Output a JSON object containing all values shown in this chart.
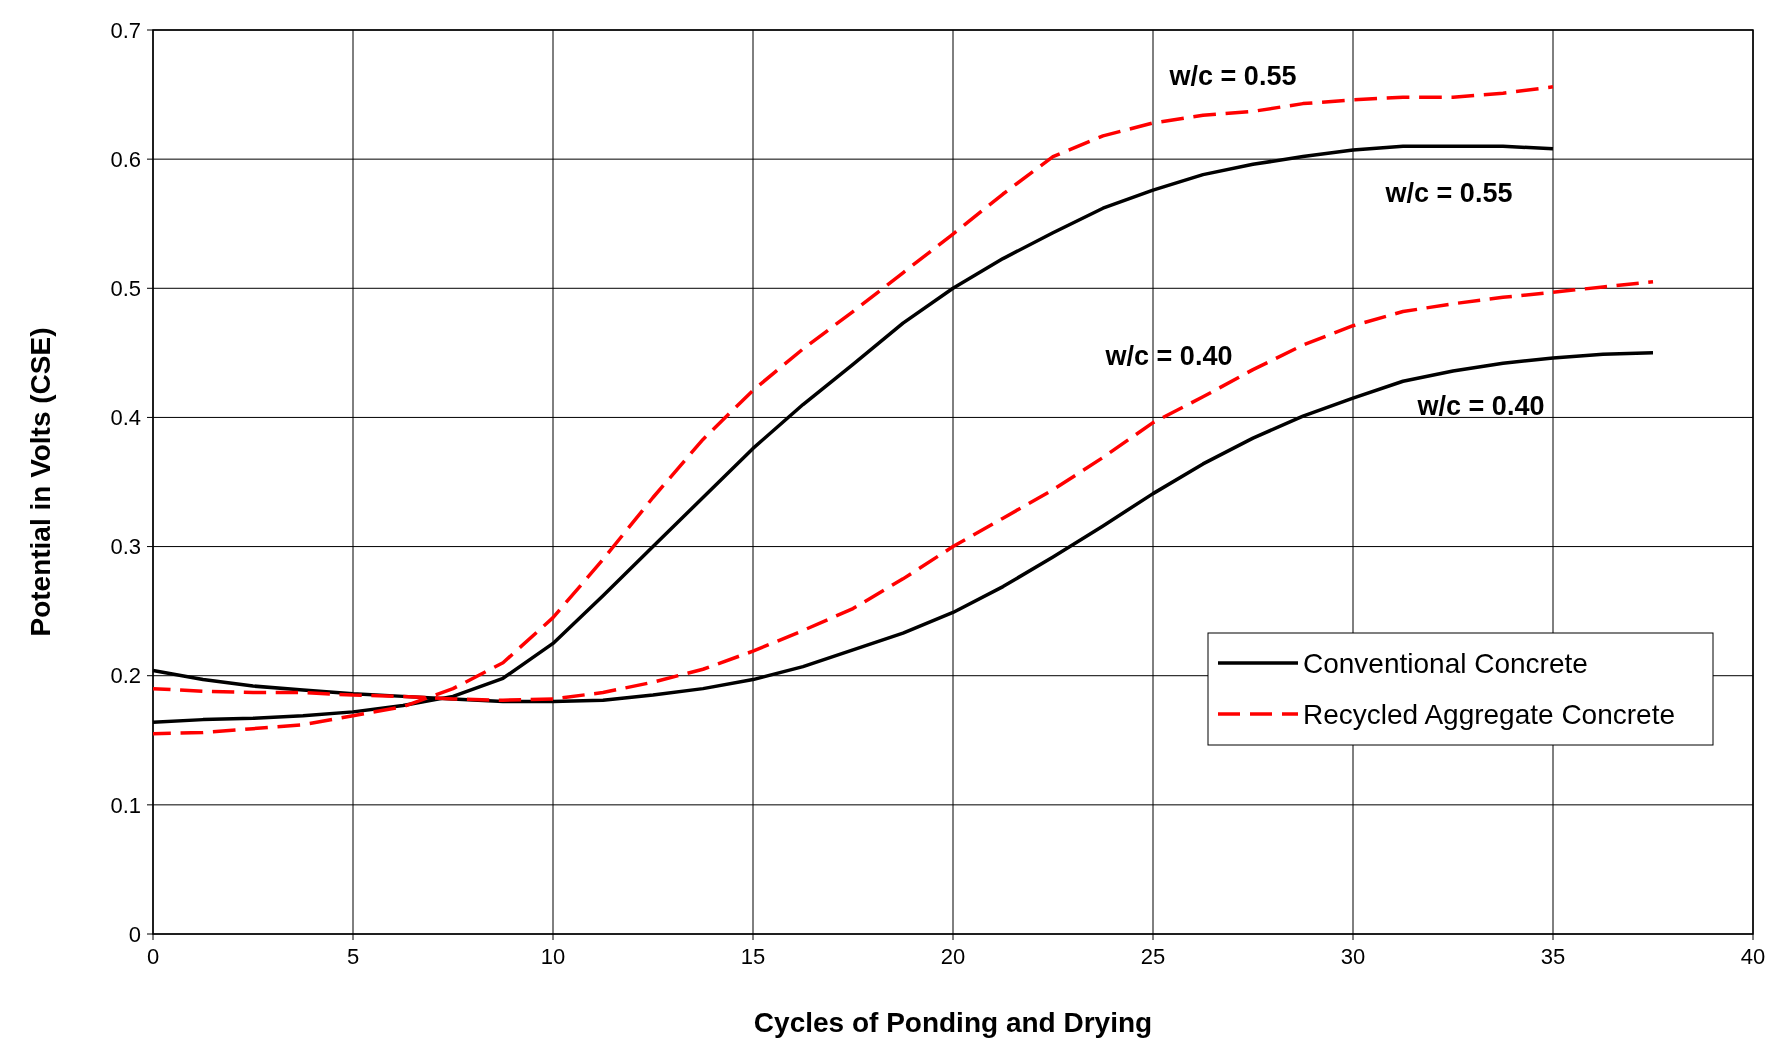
{
  "chart_data": {
    "type": "line",
    "xlabel": "Cycles of Ponding and Drying",
    "ylabel": "Potential in Volts (CSE)",
    "xlim": [
      0,
      40
    ],
    "xticks": [
      0,
      5,
      10,
      15,
      20,
      25,
      30,
      35,
      40
    ],
    "ylim": [
      0,
      0.7
    ],
    "yticks": [
      0,
      0.1,
      0.2,
      0.3,
      0.4,
      0.5,
      0.6,
      0.7
    ],
    "grid": true,
    "legend": "right",
    "marker": "none",
    "series": [
      {
        "name": "Conventional Concrete",
        "color": "#000000",
        "line_style": "solid",
        "x": [
          0,
          1.25,
          2.5,
          3.75,
          5,
          6.25,
          7.5,
          8.75,
          10,
          11.25,
          12.5,
          13.75,
          15,
          16.25,
          17.5,
          18.75,
          20,
          21.25,
          22.5,
          23.75,
          25,
          26.25,
          27.5,
          28.75,
          30,
          31.25,
          32.5,
          33.75,
          35
        ],
        "values": [
          0.164,
          0.166,
          0.167,
          0.169,
          0.172,
          0.177,
          0.184,
          0.198,
          0.225,
          0.262,
          0.3,
          0.338,
          0.376,
          0.41,
          0.441,
          0.473,
          0.5,
          0.523,
          0.543,
          0.562,
          0.576,
          0.588,
          0.596,
          0.602,
          0.607,
          0.61,
          0.61,
          0.61,
          0.608
        ]
      },
      {
        "color": "#000000",
        "line_style": "solid",
        "x": [
          0,
          1.25,
          2.5,
          3.75,
          5,
          6.25,
          7.5,
          8.75,
          10,
          11.25,
          12.5,
          13.75,
          15,
          16.25,
          17.5,
          18.75,
          20,
          21.25,
          22.5,
          23.75,
          25,
          26.25,
          27.5,
          28.75,
          30,
          31.25,
          32.5,
          33.75,
          35,
          36.25,
          37.5
        ],
        "values": [
          0.204,
          0.197,
          0.192,
          0.189,
          0.186,
          0.184,
          0.182,
          0.18,
          0.18,
          0.181,
          0.185,
          0.19,
          0.197,
          0.207,
          0.22,
          0.233,
          0.249,
          0.269,
          0.292,
          0.316,
          0.341,
          0.364,
          0.384,
          0.401,
          0.415,
          0.428,
          0.436,
          0.442,
          0.446,
          0.449,
          0.45
        ]
      },
      {
        "name": "Recycled Aggregate Concrete",
        "color": "#ff0000",
        "line_style": "dashed",
        "x": [
          0,
          1.25,
          2.5,
          3.75,
          5,
          6.25,
          7.5,
          8.75,
          10,
          11.25,
          12.5,
          13.75,
          15,
          16.25,
          17.5,
          18.75,
          20,
          21.25,
          22.5,
          23.75,
          25,
          26.25,
          27.5,
          28.75,
          30,
          31.25,
          32.5,
          33.75,
          35
        ],
        "values": [
          0.155,
          0.156,
          0.159,
          0.162,
          0.169,
          0.176,
          0.19,
          0.21,
          0.245,
          0.29,
          0.338,
          0.383,
          0.421,
          0.453,
          0.482,
          0.512,
          0.542,
          0.573,
          0.602,
          0.618,
          0.628,
          0.634,
          0.637,
          0.643,
          0.646,
          0.648,
          0.648,
          0.651,
          0.656
        ]
      },
      {
        "color": "#ff0000",
        "line_style": "dashed",
        "x": [
          0,
          1.25,
          2.5,
          3.75,
          5,
          6.25,
          7.5,
          8.75,
          10,
          11.25,
          12.5,
          13.75,
          15,
          16.25,
          17.5,
          18.75,
          20,
          21.25,
          22.5,
          23.75,
          25,
          26.25,
          27.5,
          28.75,
          30,
          31.25,
          32.5,
          33.75,
          35,
          36.25,
          37.5
        ],
        "values": [
          0.19,
          0.188,
          0.187,
          0.187,
          0.185,
          0.184,
          0.182,
          0.181,
          0.182,
          0.187,
          0.195,
          0.205,
          0.219,
          0.235,
          0.252,
          0.275,
          0.3,
          0.322,
          0.344,
          0.369,
          0.396,
          0.416,
          0.437,
          0.456,
          0.471,
          0.482,
          0.488,
          0.493,
          0.497,
          0.501,
          0.505
        ]
      }
    ],
    "annotations": [
      "w/c = 0.55",
      "w/c = 0.55",
      "w/c = 0.40",
      "w/c = 0.40"
    ]
  }
}
